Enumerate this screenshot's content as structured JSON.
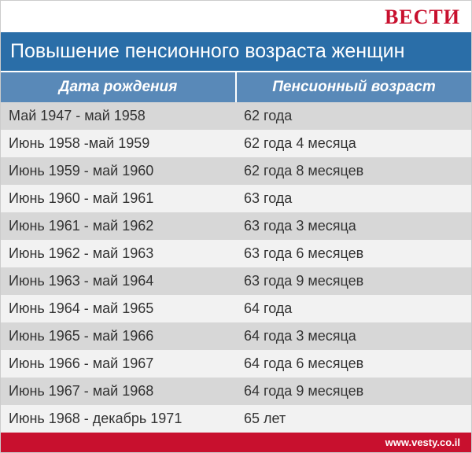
{
  "brand": "ВЕСТИ",
  "brand_color": "#c8102e",
  "title": "Повышение пенсионного возраста женщин",
  "title_bg": "#2a6ea8",
  "title_color": "#ffffff",
  "header_bg": "#5989b8",
  "header_color": "#ffffff",
  "columns": [
    "Дата рождения",
    "Пенсионный возраст"
  ],
  "row_colors": {
    "odd": "#d7d7d7",
    "even": "#f2f2f2"
  },
  "text_color": "#333333",
  "font_size_data": 18,
  "font_size_header": 19,
  "font_size_title": 25,
  "rows": [
    [
      "Май 1947 - май 1958",
      "62 года"
    ],
    [
      "Июнь 1958 -май 1959",
      "62 года 4 месяца"
    ],
    [
      "Июнь 1959 - май 1960",
      "62 года 8 месяцев"
    ],
    [
      "Июнь 1960 - май 1961",
      "63 года"
    ],
    [
      "Июнь 1961 - май 1962",
      "63 года 3 месяца"
    ],
    [
      "Июнь 1962 - май 1963",
      "63 года 6 месяцев"
    ],
    [
      "Июнь 1963 - май 1964",
      "63 года 9 месяцев"
    ],
    [
      "Июнь 1964 - май 1965",
      "64 года"
    ],
    [
      "Июнь 1965 - май 1966",
      "64 года 3 месяца"
    ],
    [
      "Июнь 1966 - май 1967",
      "64 года 6 месяцев"
    ],
    [
      "Июнь 1967 - май 1968",
      "64 года 9 месяцев"
    ],
    [
      "Июнь 1968 - декабрь 1971",
      "65 лет"
    ]
  ],
  "footer_text": "www.vesty.co.il",
  "footer_bg": "#c8102e",
  "footer_color": "#ffffff"
}
